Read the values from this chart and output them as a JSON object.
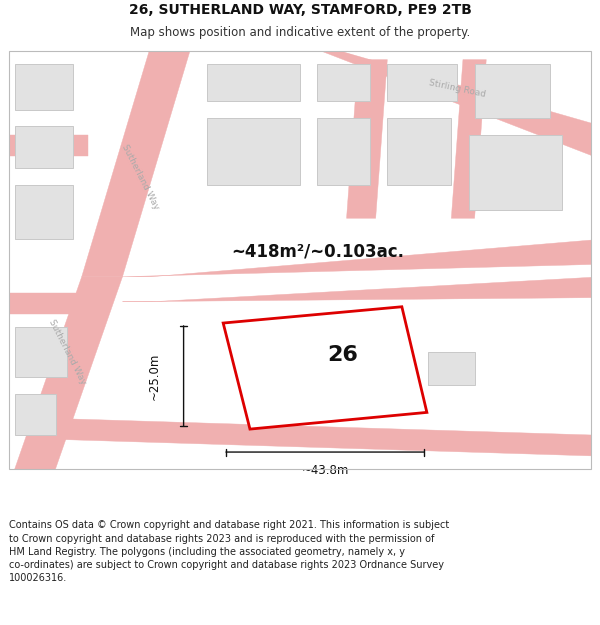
{
  "title": "26, SUTHERLAND WAY, STAMFORD, PE9 2TB",
  "subtitle": "Map shows position and indicative extent of the property.",
  "footer": "Contains OS data © Crown copyright and database right 2021. This information is subject\nto Crown copyright and database rights 2023 and is reproduced with the permission of\nHM Land Registry. The polygons (including the associated geometry, namely x, y\nco-ordinates) are subject to Crown copyright and database rights 2023 Ordnance Survey\n100026316.",
  "area_label": "~418m²/~0.103ac.",
  "width_label": "~43.8m",
  "height_label": "~25.0m",
  "plot_number": "26",
  "background_color": "#ffffff",
  "map_bg": "#f7f7f7",
  "road_stroke": "#f0b0b0",
  "building_fill": "#e2e2e2",
  "building_edge": "#c8c8c8",
  "road_label_color": "#aaaaaa",
  "highlight_color": "#dd0000",
  "highlight_fill": "#ffffff",
  "dim_color": "#111111",
  "title_fontsize": 10,
  "subtitle_fontsize": 8.5,
  "footer_fontsize": 7
}
